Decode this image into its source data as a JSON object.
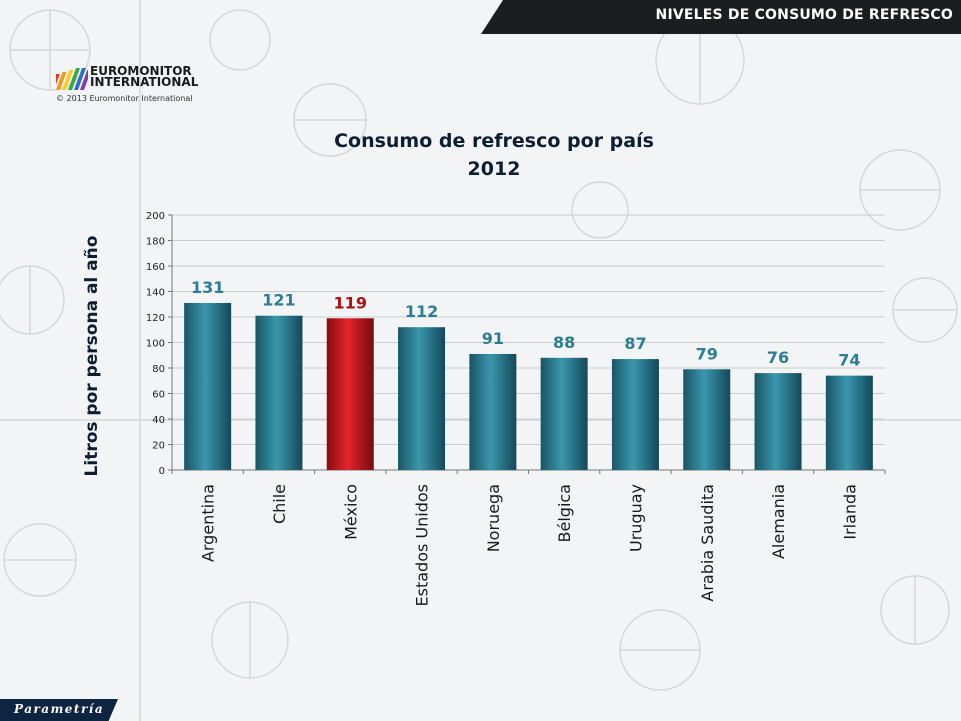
{
  "header": {
    "banner_title": "NIVELES DE CONSUMO DE REFRESCO"
  },
  "logo": {
    "name_line1": "EUROMONITOR",
    "name_line2": "INTERNATIONAL",
    "copyright": "© 2013 Euromonitor International"
  },
  "footer": {
    "brand": "Parametría"
  },
  "colors": {
    "bar": "#2b7e93",
    "bar_highlight": "#c0141b",
    "value_label": "#2b7e93",
    "value_label_highlight": "#b01010",
    "banner": "#1c1d1f"
  },
  "chart_data": {
    "type": "bar",
    "title": "Consumo de refresco por país",
    "subtitle": "2012",
    "ylabel": "Litros por persona al año",
    "xlabel": "",
    "categories": [
      "Argentina",
      "Chile",
      "México",
      "Estados Unidos",
      "Noruega",
      "Bélgica",
      "Uruguay",
      "Arabia Saudita",
      "Alemania",
      "Irlanda"
    ],
    "values": [
      131,
      121,
      119,
      112,
      91,
      88,
      87,
      79,
      76,
      74
    ],
    "highlight_category": "México",
    "ylim": [
      0,
      200
    ],
    "yticks": [
      0,
      20,
      40,
      60,
      80,
      100,
      120,
      140,
      160,
      180,
      200
    ],
    "grid": true,
    "legend": "none"
  }
}
